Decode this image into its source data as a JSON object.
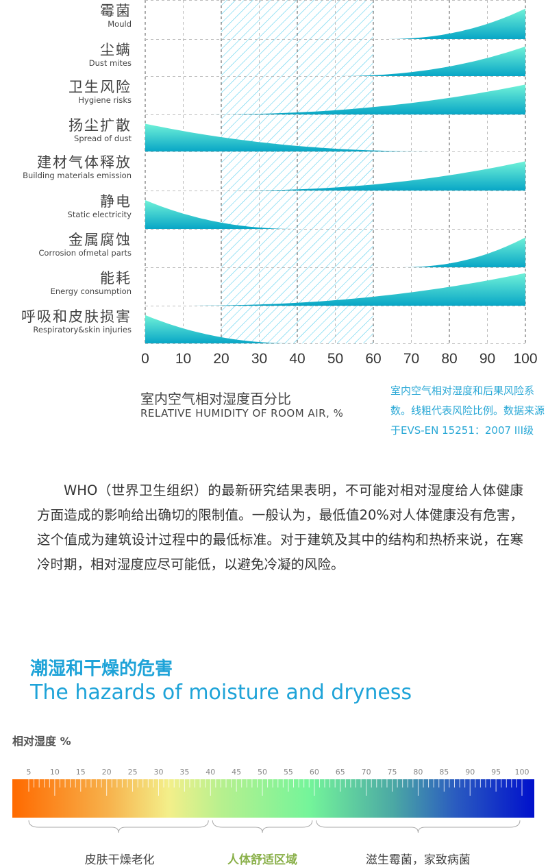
{
  "chart_data": {
    "type": "area",
    "xlabel_zh": "室内空气相对湿度百分比",
    "xlabel_en": "RELATIVE HUMIDITY OF ROOM AIR, %",
    "xlim": [
      0,
      100
    ],
    "x_ticks": [
      "0",
      "10",
      "20",
      "30",
      "40",
      "50",
      "60",
      "70",
      "80",
      "90",
      "100"
    ],
    "optimal_zone": [
      20,
      60
    ],
    "series": [
      {
        "zh": "霉菌",
        "en": "Mould",
        "from": 63,
        "to": 100,
        "direction": "increasing",
        "peak": 0.78
      },
      {
        "zh": "尘螨",
        "en": "Dust mites",
        "from": 50,
        "to": 100,
        "direction": "increasing",
        "peak": 0.8
      },
      {
        "zh": "卫生风险",
        "en": "Hygiene risks",
        "from": 15,
        "to": 100,
        "direction": "increasing",
        "peak": 0.78
      },
      {
        "zh": "扬尘扩散",
        "en": "Spread of dust",
        "from": 0,
        "to": 77,
        "direction": "decreasing",
        "peak": 0.75
      },
      {
        "zh": "建材气体释放",
        "en": "Building materials emission",
        "from": 22,
        "to": 100,
        "direction": "increasing",
        "peak": 0.75
      },
      {
        "zh": "静电",
        "en": "Static electricity",
        "from": 0,
        "to": 40,
        "direction": "decreasing",
        "peak": 0.75
      },
      {
        "zh": "金属腐蚀",
        "en": "Corrosion ofmetal parts",
        "from": 67,
        "to": 100,
        "direction": "increasing",
        "peak": 0.78
      },
      {
        "zh": "能耗",
        "en": "Energy consumption",
        "from": 10,
        "to": 100,
        "direction": "increasing",
        "peak": 0.85
      },
      {
        "zh": "呼吸和皮肤损害",
        "en": "Respiratory&skin injuries",
        "from": 0,
        "to": 40,
        "direction": "decreasing",
        "peak": 0.75
      }
    ]
  },
  "caption": "室内空气相对湿度和后果风险系数。线粗代表风险比例。数据来源于EVS-EN 15251：2007 III级",
  "paragraph": "WHO（世界卫生组织）的最新研究结果表明，不可能对相对湿度给人体健康方面造成的影响给出确切的限制值。一般认为，最低值20%对人体健康没有危害，这个值成为建筑设计过程中的最低标准。对于建筑及其中的结构和热桥来说，在寒冷时期，相对湿度应尽可能低，以避免冷凝的风险。",
  "section": {
    "title_zh": "潮湿和干燥的危害",
    "title_en": "The hazards of moisture and dryness"
  },
  "scale": {
    "label": "相对湿度 %",
    "ticks": [
      "5",
      "10",
      "15",
      "20",
      "25",
      "30",
      "35",
      "40",
      "45",
      "50",
      "55",
      "60",
      "65",
      "70",
      "75",
      "80",
      "85",
      "90",
      "95",
      "100"
    ],
    "zones": [
      {
        "label": "皮肤干燥老化",
        "color": "#444444"
      },
      {
        "label": "人体舒适区域",
        "color": "#8ab04a"
      },
      {
        "label": "滋生霉菌，家致病菌",
        "color": "#444444"
      }
    ]
  },
  "colors": {
    "accent": "#1ea3d8",
    "area_top": "#70f2d8",
    "area_bottom": "#08a6c6"
  }
}
